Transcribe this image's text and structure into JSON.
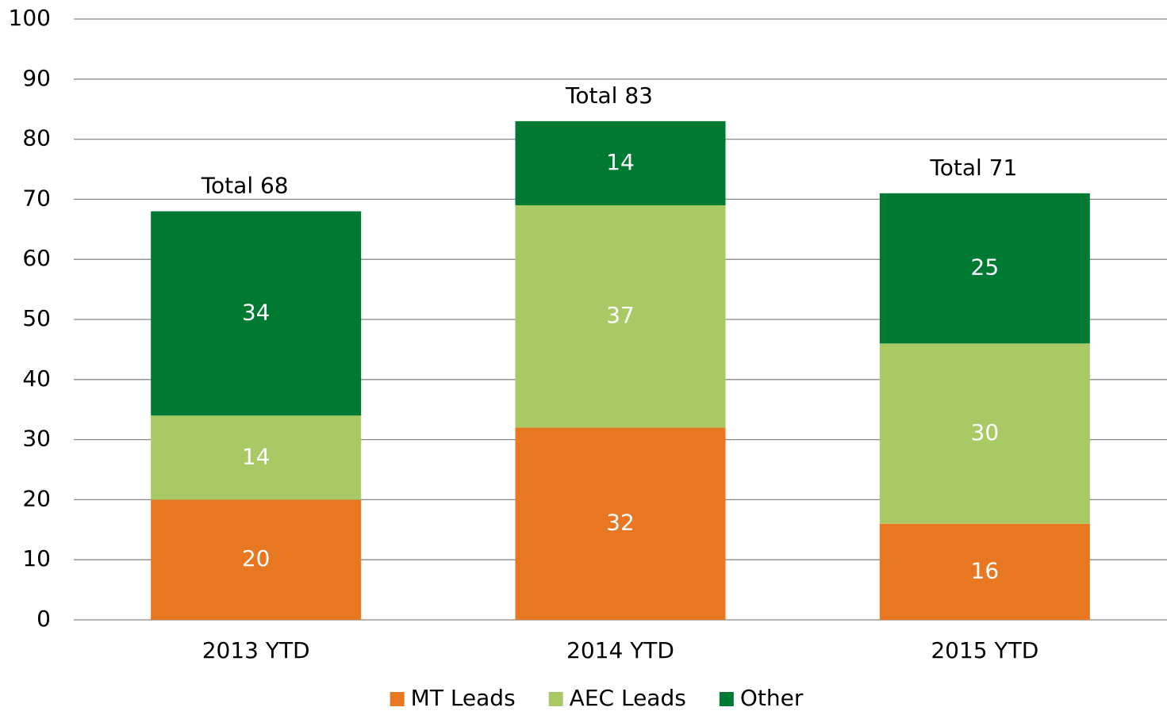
{
  "chart_data": {
    "type": "stacked_bar",
    "categories": [
      "2013 YTD",
      "2014 YTD",
      "2015 YTD"
    ],
    "series": [
      {
        "name": "MT Leads",
        "color": "#e87722",
        "values": [
          20,
          32,
          16
        ]
      },
      {
        "name": "AEC Leads",
        "color": "#a9c964",
        "values": [
          14,
          37,
          30
        ]
      },
      {
        "name": "Other",
        "color": "#007a33",
        "values": [
          34,
          14,
          25
        ]
      }
    ],
    "annotations": [
      "Total 68",
      "Total 83",
      "Total 71"
    ],
    "ylim": [
      0,
      100
    ],
    "yticks": [
      0,
      10,
      20,
      30,
      40,
      50,
      60,
      70,
      80,
      90,
      100
    ],
    "grid": true,
    "legend": "bottom"
  }
}
